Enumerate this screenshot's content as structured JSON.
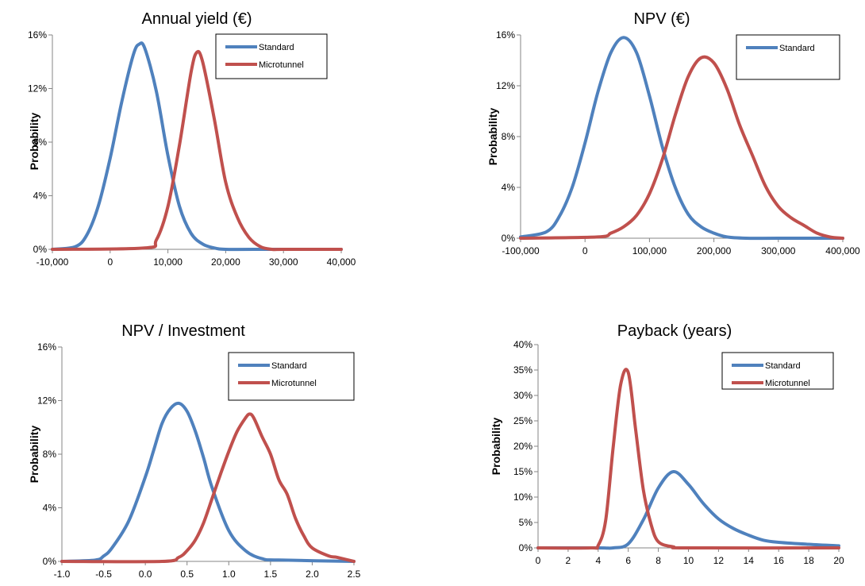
{
  "colors": {
    "standard": "#4F81BD",
    "microtunnel": "#C0504D",
    "axis": "#868686"
  },
  "chart_data": [
    {
      "type": "line",
      "title": "Annual yield (€)",
      "xlabel": "",
      "ylabel": "Probability",
      "xlim": [
        -10000,
        40000
      ],
      "ylim": [
        0,
        0.16
      ],
      "xticks": [
        -10000,
        0,
        10000,
        20000,
        30000,
        40000
      ],
      "xtick_labels": [
        "-10,000",
        "0",
        "10,000",
        "20,000",
        "30,000",
        "40,000"
      ],
      "yticks": [
        0,
        0.04,
        0.08,
        0.12,
        0.16
      ],
      "ytick_labels": [
        "0%",
        "4%",
        "8%",
        "12%",
        "16%"
      ],
      "legend": [
        "Standard",
        "Microtunnel"
      ],
      "legend_position": "top-right",
      "series": [
        {
          "name": "Standard",
          "color": "#4F81BD",
          "x": [
            -10000,
            -6000,
            -4000,
            -2000,
            0,
            2000,
            4000,
            5000,
            6000,
            8000,
            10000,
            12000,
            14000,
            16000,
            18000,
            20000,
            25000,
            40000
          ],
          "y": [
            0,
            0.002,
            0.011,
            0.033,
            0.068,
            0.11,
            0.145,
            0.153,
            0.15,
            0.118,
            0.07,
            0.032,
            0.012,
            0.004,
            0.001,
            0.0,
            0.0,
            0.0
          ]
        },
        {
          "name": "Microtunnel",
          "color": "#C0504D",
          "x": [
            -10000,
            6000,
            8000,
            10000,
            12000,
            14000,
            15000,
            16000,
            18000,
            20000,
            22000,
            24000,
            26000,
            28000,
            30000,
            40000
          ],
          "y": [
            0,
            0.001,
            0.007,
            0.032,
            0.078,
            0.132,
            0.147,
            0.14,
            0.098,
            0.05,
            0.024,
            0.009,
            0.002,
            0.0,
            0.0,
            0.0
          ]
        }
      ]
    },
    {
      "type": "line",
      "title": "NPV (€)",
      "xlabel": "",
      "ylabel": "Probability",
      "xlim": [
        -100000,
        400000
      ],
      "ylim": [
        0,
        0.16
      ],
      "xticks": [
        -100000,
        0,
        100000,
        200000,
        300000,
        400000
      ],
      "xtick_labels": [
        "-100,000",
        "0",
        "100,000",
        "200,000",
        "300,000",
        "400,000"
      ],
      "yticks": [
        0,
        0.04,
        0.08,
        0.12,
        0.16
      ],
      "ytick_labels": [
        "0%",
        "4%",
        "8%",
        "12%",
        "16%"
      ],
      "legend": [
        "Standard"
      ],
      "legend_position": "top-right",
      "series": [
        {
          "name": "Standard",
          "color": "#4F81BD",
          "x": [
            -100000,
            -60000,
            -40000,
            -20000,
            0,
            20000,
            40000,
            60000,
            80000,
            100000,
            120000,
            140000,
            160000,
            180000,
            200000,
            220000,
            250000,
            300000,
            400000
          ],
          "y": [
            0.001,
            0.005,
            0.017,
            0.04,
            0.075,
            0.115,
            0.146,
            0.158,
            0.146,
            0.112,
            0.072,
            0.04,
            0.019,
            0.009,
            0.004,
            0.001,
            0.0,
            0.0,
            0.0
          ]
        },
        {
          "name": "",
          "color": "#C0504D",
          "x": [
            -100000,
            20000,
            40000,
            60000,
            80000,
            100000,
            120000,
            140000,
            160000,
            180000,
            200000,
            220000,
            240000,
            260000,
            280000,
            300000,
            320000,
            340000,
            360000,
            380000,
            400000
          ],
          "y": [
            0,
            0.001,
            0.004,
            0.009,
            0.018,
            0.035,
            0.062,
            0.097,
            0.127,
            0.142,
            0.138,
            0.118,
            0.089,
            0.065,
            0.041,
            0.025,
            0.016,
            0.01,
            0.004,
            0.001,
            0.0
          ]
        }
      ]
    },
    {
      "type": "line",
      "title": "NPV / Investment",
      "xlabel": "",
      "ylabel": "Probability",
      "xlim": [
        -1.0,
        2.5
      ],
      "ylim": [
        0,
        0.16
      ],
      "xticks": [
        -1.0,
        -0.5,
        0.0,
        0.5,
        1.0,
        1.5,
        2.0,
        2.5
      ],
      "xtick_labels": [
        "-1.0",
        "-0.5",
        "0.0",
        "0.5",
        "1.0",
        "1.5",
        "2.0",
        "2.5"
      ],
      "yticks": [
        0,
        0.04,
        0.08,
        0.12,
        0.16
      ],
      "ytick_labels": [
        "0%",
        "4%",
        "8%",
        "12%",
        "16%"
      ],
      "legend": [
        "Standard",
        "Microtunnel"
      ],
      "legend_position": "top-right",
      "series": [
        {
          "name": "Standard",
          "color": "#4F81BD",
          "x": [
            -1.0,
            -0.6,
            -0.5,
            -0.4,
            -0.2,
            0.0,
            0.1,
            0.2,
            0.3,
            0.4,
            0.5,
            0.6,
            0.7,
            0.8,
            1.0,
            1.2,
            1.4,
            1.6,
            2.5
          ],
          "y": [
            0,
            0.001,
            0.004,
            0.01,
            0.03,
            0.063,
            0.083,
            0.103,
            0.114,
            0.118,
            0.112,
            0.097,
            0.077,
            0.055,
            0.023,
            0.008,
            0.002,
            0.001,
            0.0
          ]
        },
        {
          "name": "Microtunnel",
          "color": "#C0504D",
          "x": [
            -1.0,
            0.2,
            0.4,
            0.5,
            0.6,
            0.7,
            0.8,
            0.9,
            1.0,
            1.1,
            1.2,
            1.25,
            1.3,
            1.4,
            1.5,
            1.6,
            1.7,
            1.8,
            1.9,
            2.0,
            2.2,
            2.3,
            2.5
          ],
          "y": [
            0,
            0.0,
            0.003,
            0.008,
            0.016,
            0.029,
            0.047,
            0.065,
            0.082,
            0.097,
            0.107,
            0.11,
            0.107,
            0.093,
            0.08,
            0.061,
            0.05,
            0.032,
            0.019,
            0.01,
            0.004,
            0.003,
            0.0
          ]
        }
      ]
    },
    {
      "type": "line",
      "title": "Payback (years)",
      "xlabel": "",
      "ylabel": "Probability",
      "xlim": [
        0,
        20
      ],
      "ylim": [
        0,
        0.4
      ],
      "xticks": [
        0,
        2,
        4,
        6,
        8,
        10,
        12,
        14,
        16,
        18,
        20
      ],
      "xtick_labels": [
        "0",
        "2",
        "4",
        "6",
        "8",
        "10",
        "12",
        "14",
        "16",
        "18",
        "20"
      ],
      "yticks": [
        0,
        0.05,
        0.1,
        0.15,
        0.2,
        0.25,
        0.3,
        0.35,
        0.4
      ],
      "ytick_labels": [
        "0%",
        "5%",
        "10%",
        "15%",
        "20%",
        "25%",
        "30%",
        "35%",
        "40%"
      ],
      "legend": [
        "Standard",
        "Microtunnel"
      ],
      "legend_position": "top-right",
      "series": [
        {
          "name": "Standard",
          "color": "#4F81BD",
          "x": [
            0,
            4,
            5,
            6,
            7,
            8,
            9,
            10,
            11,
            12,
            13,
            14,
            15,
            16,
            18,
            20
          ],
          "y": [
            0,
            0.0,
            0.0,
            0.008,
            0.055,
            0.118,
            0.15,
            0.125,
            0.087,
            0.057,
            0.038,
            0.025,
            0.015,
            0.011,
            0.007,
            0.004
          ]
        },
        {
          "name": "Microtunnel",
          "color": "#C0504D",
          "x": [
            0,
            3.5,
            4,
            4.5,
            5,
            5.5,
            6,
            6.5,
            7,
            7.5,
            8,
            9,
            10,
            20
          ],
          "y": [
            0,
            0.0,
            0.005,
            0.055,
            0.2,
            0.322,
            0.345,
            0.23,
            0.115,
            0.048,
            0.012,
            0.002,
            0.0,
            0.0
          ]
        }
      ]
    }
  ]
}
